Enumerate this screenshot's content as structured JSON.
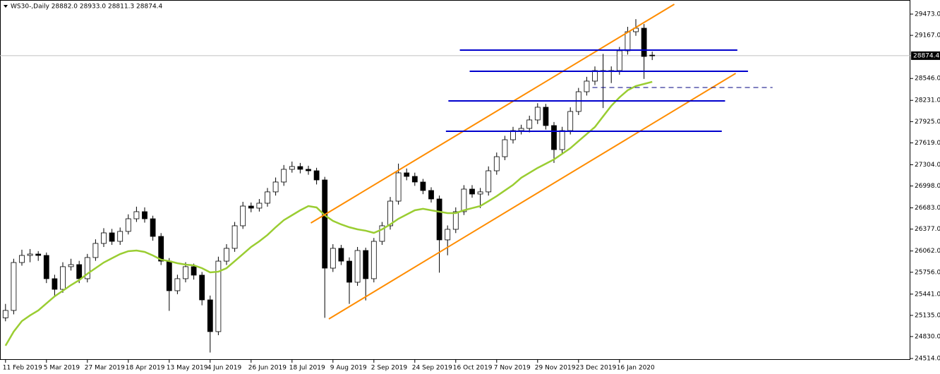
{
  "chart_data": {
    "type": "candlestick",
    "title": "WS30-,Daily  28882.0 28933.0 28811.3 28874.4",
    "categories": [
      "11 Feb 2019",
      null,
      null,
      null,
      null,
      "5 Mar 2019",
      null,
      null,
      null,
      null,
      "27 Mar 2019",
      null,
      null,
      null,
      null,
      "18 Apr 2019",
      null,
      null,
      null,
      null,
      "13 May 2019",
      null,
      null,
      null,
      null,
      "4 Jun 2019",
      null,
      null,
      null,
      null,
      "26 Jun 2019",
      null,
      null,
      null,
      null,
      "18 Jul 2019",
      null,
      null,
      null,
      null,
      "9 Aug 2019",
      null,
      null,
      null,
      null,
      "2 Sep 2019",
      null,
      null,
      null,
      null,
      "24 Sep 2019",
      null,
      null,
      null,
      null,
      "16 Oct 2019",
      null,
      null,
      null,
      null,
      "7 Nov 2019",
      null,
      null,
      null,
      null,
      "29 Nov 2019",
      null,
      null,
      null,
      null,
      "23 Dec 2019",
      null,
      null,
      null,
      null,
      "16 Jan 2020",
      null,
      null,
      null,
      null
    ],
    "candles": [
      [
        25100,
        25300,
        25050,
        25206
      ],
      [
        25206,
        25950,
        25150,
        25896
      ],
      [
        25896,
        26080,
        25850,
        25998
      ],
      [
        25998,
        26090,
        25900,
        26018
      ],
      [
        26018,
        26060,
        25920,
        25998
      ],
      [
        25998,
        26040,
        25600,
        25663
      ],
      [
        25663,
        25720,
        25400,
        25510
      ],
      [
        25510,
        25900,
        25460,
        25836
      ],
      [
        25836,
        25950,
        25780,
        25866
      ],
      [
        25866,
        25920,
        25600,
        25663
      ],
      [
        25663,
        26020,
        25610,
        25968
      ],
      [
        25968,
        26230,
        25920,
        26171
      ],
      [
        26171,
        26390,
        26120,
        26323
      ],
      [
        26323,
        26380,
        26150,
        26201
      ],
      [
        26201,
        26400,
        26150,
        26344
      ],
      [
        26344,
        26590,
        26300,
        26526
      ],
      [
        26526,
        26700,
        26480,
        26628
      ],
      [
        26628,
        26690,
        26470,
        26526
      ],
      [
        26526,
        26570,
        26210,
        26272
      ],
      [
        26272,
        26320,
        25860,
        25916
      ],
      [
        25916,
        25960,
        25200,
        25490
      ],
      [
        25490,
        25720,
        25440,
        25663
      ],
      [
        25663,
        25900,
        25610,
        25836
      ],
      [
        25836,
        25880,
        25650,
        25714
      ],
      [
        25714,
        25760,
        25280,
        25358
      ],
      [
        25358,
        25420,
        24600,
        24901
      ],
      [
        24901,
        25980,
        24850,
        25916
      ],
      [
        25916,
        26160,
        25860,
        26100
      ],
      [
        26100,
        26480,
        26050,
        26425
      ],
      [
        26425,
        26770,
        26380,
        26709
      ],
      [
        26709,
        26760,
        26620,
        26679
      ],
      [
        26679,
        26810,
        26630,
        26750
      ],
      [
        26750,
        26970,
        26700,
        26913
      ],
      [
        26913,
        27120,
        26860,
        27055
      ],
      [
        27055,
        27300,
        27000,
        27238
      ],
      [
        27238,
        27350,
        27190,
        27278
      ],
      [
        27278,
        27330,
        27180,
        27238
      ],
      [
        27238,
        27290,
        27160,
        27217
      ],
      [
        27217,
        27260,
        27020,
        27085
      ],
      [
        27085,
        27130,
        25100,
        25815
      ],
      [
        25815,
        26160,
        25760,
        26100
      ],
      [
        26100,
        26150,
        25860,
        25916
      ],
      [
        25916,
        25970,
        25300,
        25612
      ],
      [
        25612,
        26120,
        25560,
        26069
      ],
      [
        26069,
        26110,
        25350,
        25663
      ],
      [
        25663,
        26250,
        25610,
        26201
      ],
      [
        26201,
        26480,
        26150,
        26425
      ],
      [
        26425,
        26840,
        26370,
        26780
      ],
      [
        26780,
        27320,
        26730,
        27187
      ],
      [
        27187,
        27250,
        27080,
        27136
      ],
      [
        27136,
        27190,
        27000,
        27055
      ],
      [
        27055,
        27100,
        26880,
        26933
      ],
      [
        26933,
        26980,
        26760,
        26811
      ],
      [
        26811,
        26860,
        25750,
        26222
      ],
      [
        26222,
        26430,
        26000,
        26374
      ],
      [
        26374,
        26690,
        26320,
        26628
      ],
      [
        26628,
        27010,
        26580,
        26953
      ],
      [
        26953,
        27010,
        26830,
        26882
      ],
      [
        26882,
        26970,
        26680,
        26913
      ],
      [
        26913,
        27280,
        26860,
        27217
      ],
      [
        27217,
        27480,
        27160,
        27420
      ],
      [
        27420,
        27720,
        27370,
        27664
      ],
      [
        27664,
        27850,
        27610,
        27796
      ],
      [
        27796,
        27880,
        27740,
        27827
      ],
      [
        27827,
        28010,
        27770,
        27949
      ],
      [
        27949,
        28190,
        27890,
        28132
      ],
      [
        28132,
        28180,
        27810,
        27868
      ],
      [
        27868,
        27920,
        27330,
        27522
      ],
      [
        27522,
        27850,
        27470,
        27796
      ],
      [
        27796,
        28130,
        27740,
        28071
      ],
      [
        28071,
        28410,
        28020,
        28355
      ],
      [
        28355,
        28570,
        28300,
        28508
      ],
      [
        28508,
        28720,
        28450,
        28660
      ],
      [
        28660,
        28900,
        28120,
        28660
      ],
      [
        28660,
        28720,
        28480,
        28660
      ],
      [
        28660,
        29000,
        28600,
        28945
      ],
      [
        28945,
        29290,
        28890,
        29219
      ],
      [
        29219,
        29400,
        29160,
        29270
      ],
      [
        29270,
        29330,
        28540,
        28863
      ],
      [
        28882,
        28933,
        28811.3,
        28874.4
      ]
    ],
    "ma": {
      "color": "#9acd32",
      "values": [
        24698,
        24901,
        25053,
        25135,
        25206,
        25307,
        25409,
        25490,
        25571,
        25643,
        25734,
        25815,
        25896,
        25957,
        26018,
        26059,
        26069,
        26049,
        25998,
        25937,
        25916,
        25886,
        25866,
        25856,
        25815,
        25754,
        25764,
        25815,
        25916,
        26018,
        26120,
        26201,
        26293,
        26404,
        26506,
        26577,
        26648,
        26709,
        26689,
        26577,
        26496,
        26445,
        26404,
        26374,
        26354,
        26323,
        26374,
        26445,
        26526,
        26587,
        26648,
        26669,
        26648,
        26628,
        26608,
        26608,
        26648,
        26679,
        26709,
        26780,
        26852,
        26933,
        27014,
        27116,
        27187,
        27258,
        27319,
        27380,
        27461,
        27542,
        27644,
        27746,
        27847,
        28000,
        28152,
        28274,
        28376,
        28437,
        28467,
        28498
      ]
    },
    "current_price": 28874.4,
    "drawings": [
      {
        "color": "#ff8c00",
        "x": [
          37.3,
          81.7
        ],
        "y": [
          26465,
          29615
        ]
      },
      {
        "color": "#ff8c00",
        "x": [
          39.5,
          89.2
        ],
        "y": [
          25083,
          28620
        ]
      },
      {
        "color": "#0000cd",
        "x": [
          55.5,
          89.4
        ],
        "y": [
          28955,
          28955
        ]
      },
      {
        "color": "#0000cd",
        "x": [
          56.7,
          90.7
        ],
        "y": [
          28650,
          28650
        ]
      },
      {
        "color": "#0000cd",
        "x": [
          54.1,
          87.9
        ],
        "y": [
          28223,
          28223
        ]
      },
      {
        "color": "#0000cd",
        "x": [
          53.8,
          87.5
        ],
        "y": [
          27786,
          27786
        ]
      },
      {
        "color": "#000080",
        "x": [
          71.7,
          93.7
        ],
        "y": [
          28416,
          28416
        ],
        "dashed": true
      }
    ],
    "ylim": [
      24494,
      29676
    ],
    "yticks": [
      {
        "value": 29473,
        "label": "29473.0"
      },
      {
        "value": 29167,
        "label": "29167.0"
      },
      {
        "value": 28546,
        "label": "28546.0"
      },
      {
        "value": 28231,
        "label": "28231.0"
      },
      {
        "value": 27925,
        "label": "27925.0"
      },
      {
        "value": 27619,
        "label": "27619.0"
      },
      {
        "value": 27304,
        "label": "27304.0"
      },
      {
        "value": 26998,
        "label": "26998.0"
      },
      {
        "value": 26683,
        "label": "26683.0"
      },
      {
        "value": 26377,
        "label": "26377.0"
      },
      {
        "value": 26062,
        "label": "26062.0"
      },
      {
        "value": 25756,
        "label": "25756.0"
      },
      {
        "value": 25441,
        "label": "25441.0"
      },
      {
        "value": 25135,
        "label": "25135.0"
      },
      {
        "value": 24830,
        "label": "24830.0"
      },
      {
        "value": 24514,
        "label": "24514.0"
      }
    ]
  }
}
